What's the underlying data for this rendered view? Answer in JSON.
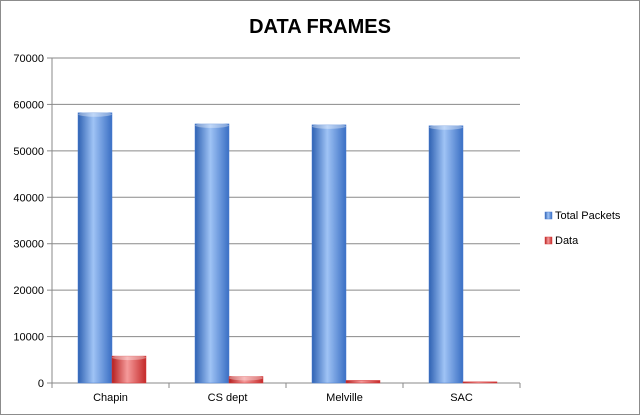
{
  "chart_data": {
    "type": "bar",
    "title": "DATA FRAMES",
    "categories": [
      "Chapin",
      "CS dept",
      "Melville",
      "SAC"
    ],
    "series": [
      {
        "name": "Total Packets",
        "values": [
          58200,
          55800,
          55600,
          55400
        ],
        "color": "#4a7fd3"
      },
      {
        "name": "Data",
        "values": [
          5800,
          1400,
          550,
          250
        ],
        "color": "#d83a3a"
      }
    ],
    "ylim": [
      0,
      70000
    ],
    "yticks": [
      0,
      10000,
      20000,
      30000,
      40000,
      50000,
      60000,
      70000
    ],
    "grid": true,
    "legend": "right"
  }
}
